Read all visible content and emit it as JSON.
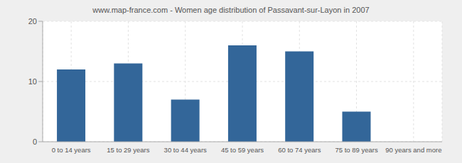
{
  "chart_data": {
    "type": "bar",
    "title": "www.map-france.com - Women age distribution of Passavant-sur-Layon in 2007",
    "categories": [
      "0 to 14 years",
      "15 to 29 years",
      "30 to 44 years",
      "45 to 59 years",
      "60 to 74 years",
      "75 to 89 years",
      "90 years and more"
    ],
    "values": [
      12,
      13,
      7,
      16,
      15,
      5,
      0
    ],
    "color": "#336699",
    "ylim": [
      0,
      20
    ],
    "yticks": [
      0,
      10,
      20
    ],
    "grid": true
  }
}
